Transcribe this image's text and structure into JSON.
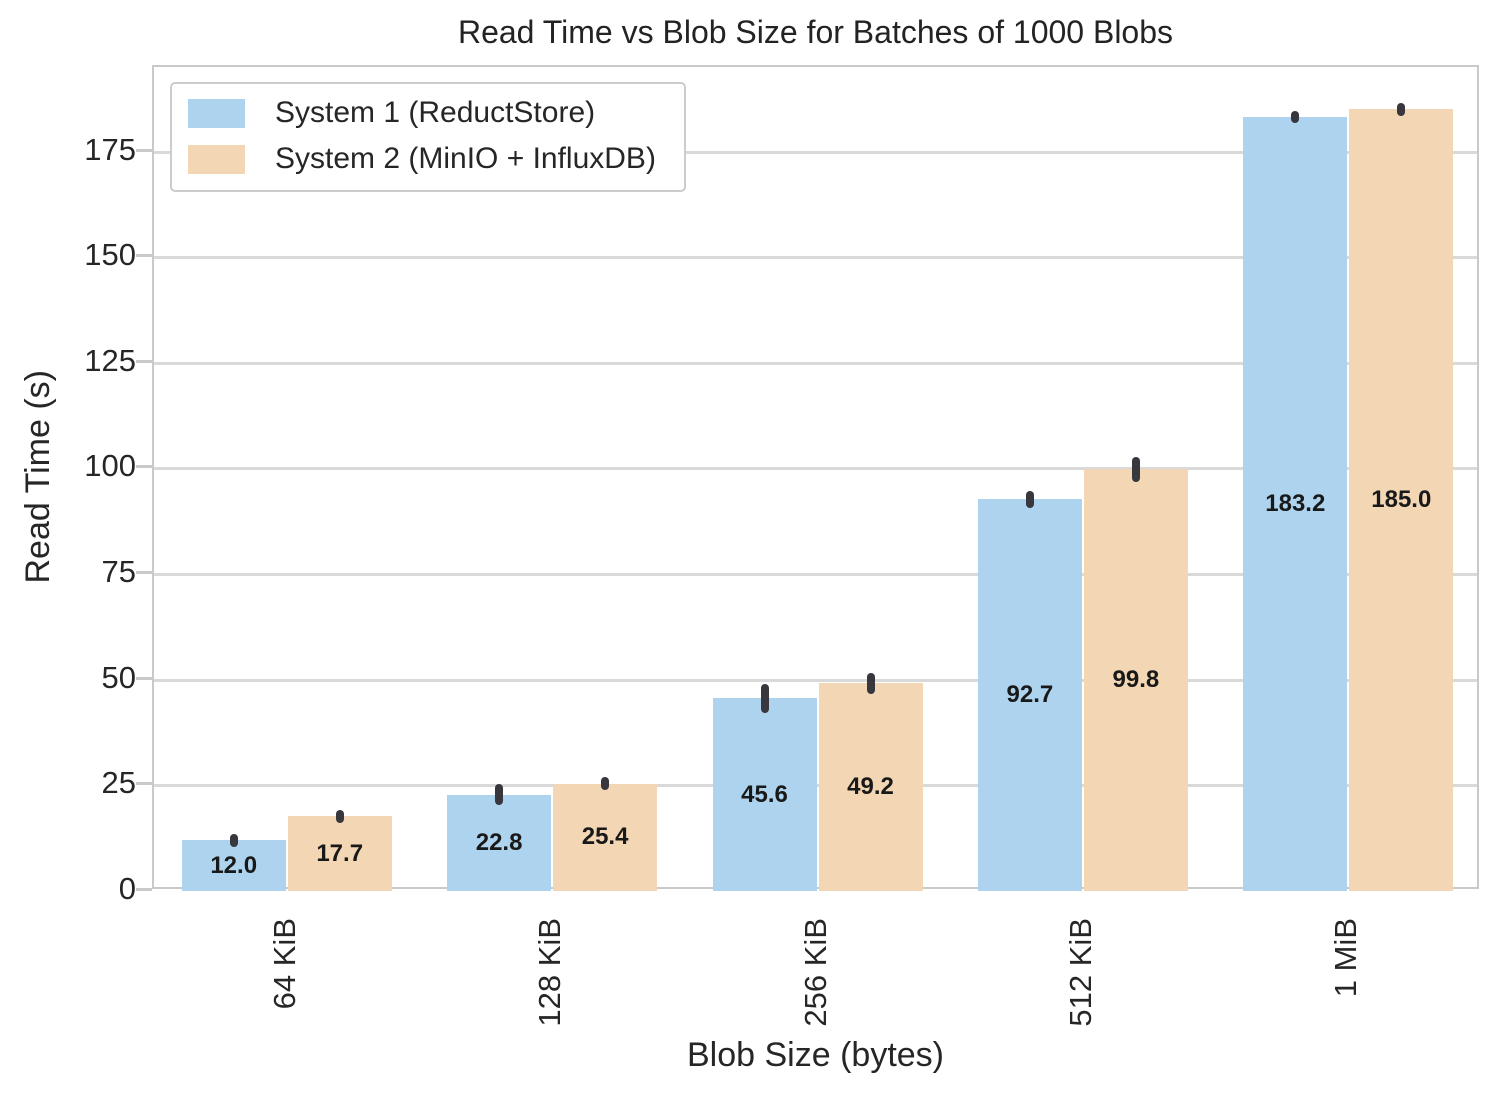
{
  "chart_data": {
    "type": "bar",
    "title": "Read Time vs Blob Size for Batches of 1000 Blobs",
    "xlabel": "Blob Size (bytes)",
    "ylabel": "Read Time (s)",
    "categories": [
      "64 KiB",
      "128 KiB",
      "256 KiB",
      "512 KiB",
      "1 MiB"
    ],
    "series": [
      {
        "name": "System 1 (ReductStore)",
        "color": "#aed3ee",
        "values": [
          12.0,
          22.8,
          45.6,
          92.7,
          183.2
        ],
        "labels": [
          "12.0",
          "22.8",
          "45.6",
          "92.7",
          "183.2"
        ],
        "errors": [
          1.5,
          2.5,
          3.5,
          2.0,
          1.5
        ]
      },
      {
        "name": "System 2 (MinIO + InfluxDB)",
        "color": "#f3d6b4",
        "values": [
          17.7,
          25.4,
          49.2,
          99.8,
          185.0
        ],
        "labels": [
          "17.7",
          "25.4",
          "49.2",
          "99.8",
          "185.0"
        ],
        "errors": [
          1.5,
          1.5,
          2.5,
          3.0,
          1.5
        ]
      }
    ],
    "yticks": [
      "0",
      "25",
      "50",
      "75",
      "100",
      "125",
      "150",
      "175"
    ],
    "ylim": [
      0,
      195
    ],
    "grid": "horizontal",
    "legend_position": "upper-left",
    "colors": {
      "error_bar": "#37373d",
      "gridline": "#d9d9d9",
      "spine": "#c9c9c9",
      "text": "#262626",
      "bar_label": "#191919",
      "background": "#ffffff"
    }
  }
}
